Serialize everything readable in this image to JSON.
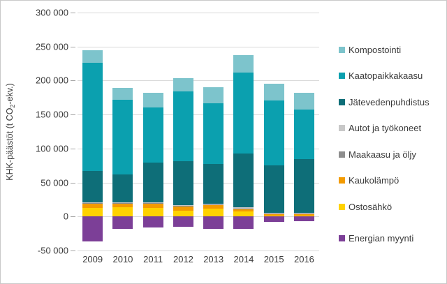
{
  "chart_data": {
    "type": "bar",
    "stacked": true,
    "title": "",
    "ylabel": {
      "before_sub": "KHK-päästöt (t CO",
      "sub": "2",
      "after_sub": "-ekv.)"
    },
    "categories": [
      "2009",
      "2010",
      "2011",
      "2012",
      "2013",
      "2014",
      "2015",
      "2016"
    ],
    "series": [
      {
        "name": "Kompostointi",
        "color": "#7dc4cc",
        "values": [
          19000,
          17000,
          22000,
          20000,
          23000,
          25000,
          24000,
          25000
        ]
      },
      {
        "name": "Kaatopaikkakaasu",
        "color": "#0ba0af",
        "values": [
          159000,
          110000,
          81000,
          103000,
          90000,
          119000,
          96000,
          73000
        ]
      },
      {
        "name": "Jätevedenpuhdistus",
        "color": "#0e6e78",
        "values": [
          46000,
          41000,
          58000,
          64000,
          58000,
          79000,
          70000,
          79000
        ]
      },
      {
        "name": "Autot ja työkoneet",
        "color": "#c8c8c8",
        "values": [
          1000,
          1000,
          1000,
          1000,
          1000,
          2000,
          1000,
          1000
        ]
      },
      {
        "name": "Maakaasu ja öljy",
        "color": "#8e8e8e",
        "values": [
          1000,
          1000,
          1000,
          1000,
          1000,
          1000,
          1000,
          1000
        ]
      },
      {
        "name": "Kaukolämpö",
        "color": "#f39b00",
        "values": [
          6000,
          5000,
          6000,
          6000,
          5000,
          4000,
          2000,
          2000
        ]
      },
      {
        "name": "Ostosähkö",
        "color": "#ffd200",
        "values": [
          13000,
          14000,
          13000,
          9000,
          12000,
          7000,
          1000,
          1000
        ]
      },
      {
        "name": "Energian myynti",
        "color": "#7c3f97",
        "values": [
          -37000,
          -18000,
          -16000,
          -15000,
          -18000,
          -18000,
          -8000,
          -7000
        ]
      }
    ],
    "yticks": [
      {
        "value": 300000,
        "label": "300 000"
      },
      {
        "value": 250000,
        "label": "250 000"
      },
      {
        "value": 200000,
        "label": "200 000"
      },
      {
        "value": 150000,
        "label": "150 000"
      },
      {
        "value": 100000,
        "label": "100 000"
      },
      {
        "value": 50000,
        "label": "50 000"
      },
      {
        "value": 0,
        "label": "0"
      },
      {
        "value": -50000,
        "label": "-50 000"
      }
    ],
    "ylim": [
      -50000,
      300000
    ],
    "grid": true,
    "legend_position": "right",
    "legend_gap_before": "Energian myynti"
  }
}
